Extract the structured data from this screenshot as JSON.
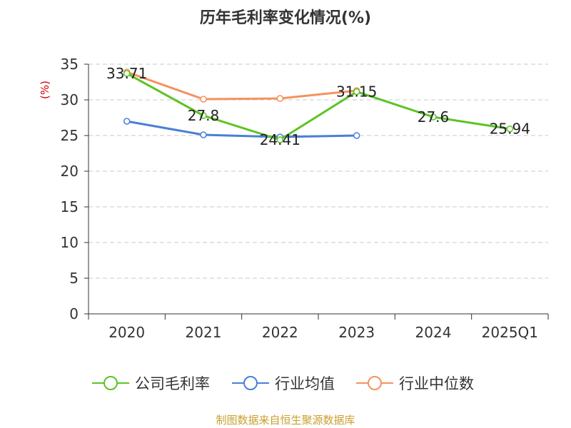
{
  "chart_data": {
    "type": "line",
    "title": "历年毛利率变化情况(%)",
    "ylabel": "(%)",
    "categories": [
      "2020",
      "2021",
      "2022",
      "2023",
      "2024",
      "2025Q1"
    ],
    "ylim": [
      0,
      35
    ],
    "yticks": [
      0,
      5,
      10,
      15,
      20,
      25,
      30,
      35
    ],
    "grid": true,
    "legend_position": "bottom",
    "series": [
      {
        "name": "公司毛利率",
        "color": "#5cc324",
        "values": [
          33.71,
          27.8,
          24.41,
          31.15,
          27.6,
          25.94
        ],
        "labels": [
          "33.71",
          "27.8",
          "24.41",
          "31.15",
          "27.6",
          "25.94"
        ]
      },
      {
        "name": "行业均值",
        "color": "#4a7fd6",
        "values": [
          27.0,
          25.1,
          24.8,
          25.0,
          null,
          null
        ]
      },
      {
        "name": "行业中位数",
        "color": "#f5925e",
        "values": [
          33.9,
          30.1,
          30.2,
          31.3,
          null,
          null
        ]
      }
    ]
  },
  "source": "制图数据来自恒生聚源数据库"
}
